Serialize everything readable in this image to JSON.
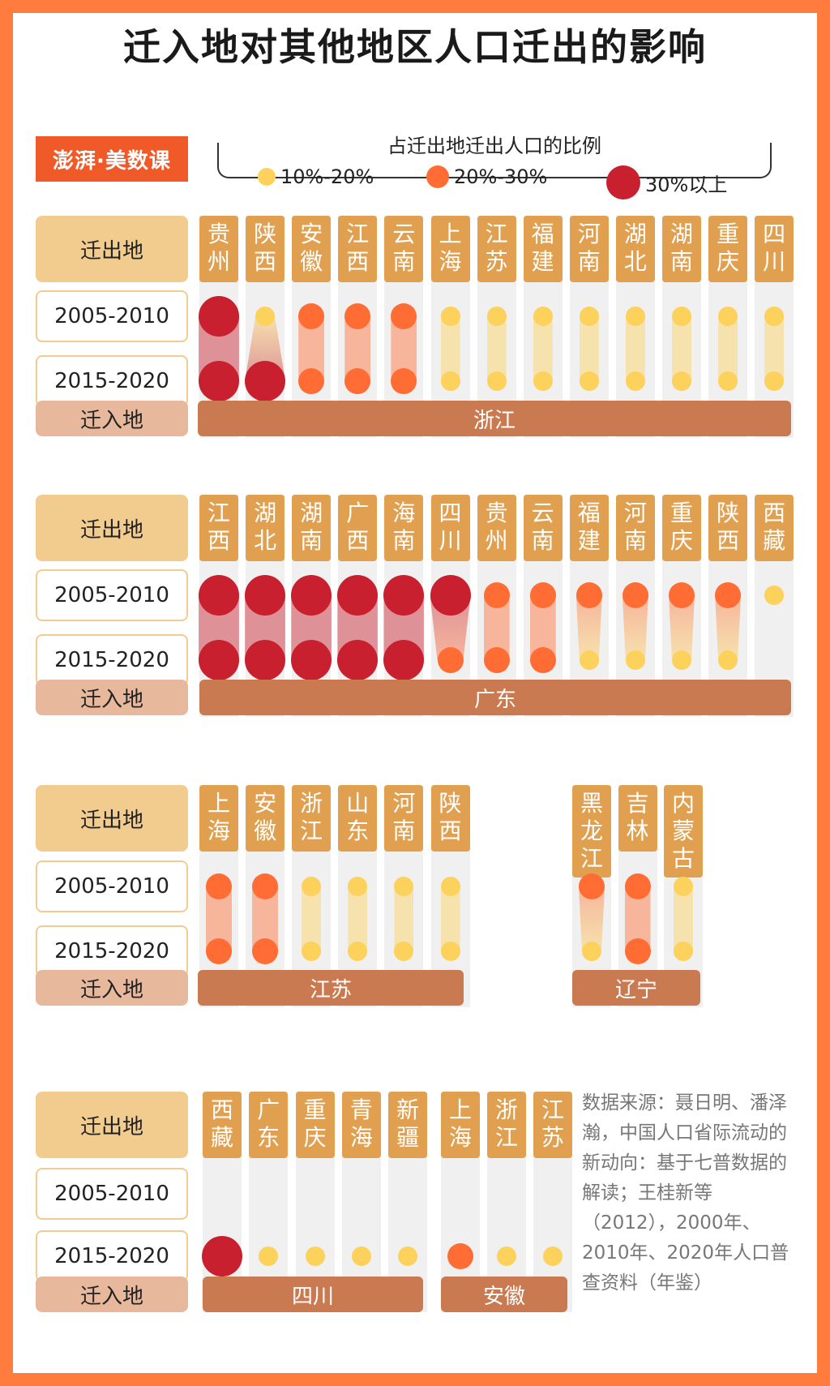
{
  "title": "迁入地对其他地区人口迁出的影响",
  "logo": "澎湃·美数课",
  "legend": {
    "title": "占迁出地迁出人口的比例",
    "items": [
      {
        "label": "10%-20%",
        "level": 1,
        "color": "#fcd15c"
      },
      {
        "label": "20%-30%",
        "level": 2,
        "color": "#ff6d35"
      },
      {
        "label": "30%以上",
        "level": 3,
        "color": "#c8202e"
      }
    ]
  },
  "labels": {
    "out": "迁出地",
    "p1": "2005-2010",
    "p2": "2015-2020",
    "in": "迁入地"
  },
  "source": "数据来源：聂日明、潘泽瀚，中国人口省际流动的新动向：基于七普数据的解读；王桂新等（2012），2000年、2010年、2020年人口普查资料（年鉴）",
  "chart_data": {
    "type": "table",
    "level_scale": {
      "1": "10%-20%",
      "2": "20%-30%",
      "3": "30%以上"
    },
    "destinations": [
      {
        "name": "浙江",
        "origins": [
          {
            "name": "贵州",
            "p2005": 3,
            "p2015": 3
          },
          {
            "name": "陕西",
            "p2005": 1,
            "p2015": 3
          },
          {
            "name": "安徽",
            "p2005": 2,
            "p2015": 2
          },
          {
            "name": "江西",
            "p2005": 2,
            "p2015": 2
          },
          {
            "name": "云南",
            "p2005": 2,
            "p2015": 2
          },
          {
            "name": "上海",
            "p2005": 1,
            "p2015": 1
          },
          {
            "name": "江苏",
            "p2005": 1,
            "p2015": 1
          },
          {
            "name": "福建",
            "p2005": 1,
            "p2015": 1
          },
          {
            "name": "河南",
            "p2005": 1,
            "p2015": 1
          },
          {
            "name": "湖北",
            "p2005": 1,
            "p2015": 1
          },
          {
            "name": "湖南",
            "p2005": 1,
            "p2015": 1
          },
          {
            "name": "重庆",
            "p2005": 1,
            "p2015": 1
          },
          {
            "name": "四川",
            "p2005": 1,
            "p2015": 1
          }
        ]
      },
      {
        "name": "广东",
        "origins": [
          {
            "name": "江西",
            "p2005": 3,
            "p2015": 3
          },
          {
            "name": "湖北",
            "p2005": 3,
            "p2015": 3
          },
          {
            "name": "湖南",
            "p2005": 3,
            "p2015": 3
          },
          {
            "name": "广西",
            "p2005": 3,
            "p2015": 3
          },
          {
            "name": "海南",
            "p2005": 3,
            "p2015": 3
          },
          {
            "name": "四川",
            "p2005": 3,
            "p2015": 2
          },
          {
            "name": "贵州",
            "p2005": 2,
            "p2015": 2
          },
          {
            "name": "云南",
            "p2005": 2,
            "p2015": 2
          },
          {
            "name": "福建",
            "p2005": 2,
            "p2015": 1
          },
          {
            "name": "河南",
            "p2005": 2,
            "p2015": 1
          },
          {
            "name": "重庆",
            "p2005": 2,
            "p2015": 1
          },
          {
            "name": "陕西",
            "p2005": 2,
            "p2015": 1
          },
          {
            "name": "西藏",
            "p2005": 1,
            "p2015": null
          }
        ]
      },
      {
        "name": "江苏",
        "origins": [
          {
            "name": "上海",
            "p2005": 2,
            "p2015": 2
          },
          {
            "name": "安徽",
            "p2005": 2,
            "p2015": 2
          },
          {
            "name": "浙江",
            "p2005": 1,
            "p2015": 1
          },
          {
            "name": "山东",
            "p2005": 1,
            "p2015": 1
          },
          {
            "name": "河南",
            "p2005": 1,
            "p2015": 1
          },
          {
            "name": "陕西",
            "p2005": 1,
            "p2015": 1
          }
        ]
      },
      {
        "name": "辽宁",
        "origins": [
          {
            "name": "黑龙江",
            "p2005": 2,
            "p2015": 1
          },
          {
            "name": "吉林",
            "p2005": 2,
            "p2015": 2
          },
          {
            "name": "内蒙古",
            "p2005": 1,
            "p2015": 1
          }
        ]
      },
      {
        "name": "四川",
        "origins": [
          {
            "name": "西藏",
            "p2005": null,
            "p2015": 3
          },
          {
            "name": "广东",
            "p2005": null,
            "p2015": 1
          },
          {
            "name": "重庆",
            "p2005": null,
            "p2015": 1
          },
          {
            "name": "青海",
            "p2005": null,
            "p2015": 1
          },
          {
            "name": "新疆",
            "p2005": null,
            "p2015": 1
          }
        ]
      },
      {
        "name": "安徽",
        "origins": [
          {
            "name": "上海",
            "p2005": null,
            "p2015": 2
          },
          {
            "name": "浙江",
            "p2005": null,
            "p2015": 1
          },
          {
            "name": "江苏",
            "p2005": null,
            "p2015": 1
          }
        ]
      }
    ]
  }
}
